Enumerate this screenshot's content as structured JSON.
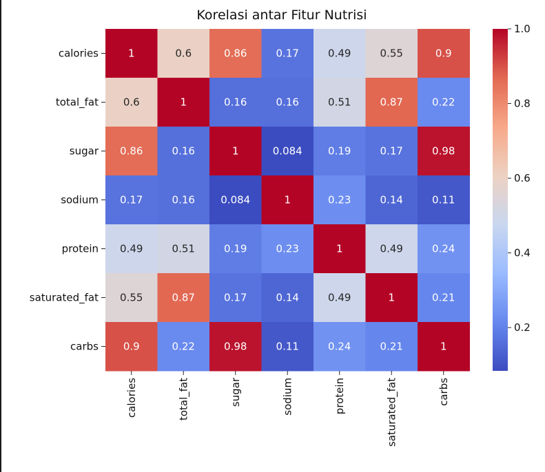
{
  "chart_data": {
    "type": "heatmap",
    "title": "Korelasi antar Fitur Nutrisi",
    "xlabel": "",
    "ylabel": "",
    "labels": [
      "calories",
      "total_fat",
      "sugar",
      "sodium",
      "protein",
      "saturated_fat",
      "carbs"
    ],
    "matrix": [
      [
        1,
        0.6,
        0.86,
        0.17,
        0.49,
        0.55,
        0.9
      ],
      [
        0.6,
        1,
        0.16,
        0.16,
        0.51,
        0.87,
        0.22
      ],
      [
        0.86,
        0.16,
        1,
        0.084,
        0.19,
        0.17,
        0.98
      ],
      [
        0.17,
        0.16,
        0.084,
        1,
        0.23,
        0.14,
        0.11
      ],
      [
        0.49,
        0.51,
        0.19,
        0.23,
        1,
        0.49,
        0.24
      ],
      [
        0.55,
        0.87,
        0.17,
        0.14,
        0.49,
        1,
        0.21
      ],
      [
        0.9,
        0.22,
        0.98,
        0.11,
        0.24,
        0.21,
        1
      ]
    ],
    "annotations": [
      [
        "1",
        "0.6",
        "0.86",
        "0.17",
        "0.49",
        "0.55",
        "0.9"
      ],
      [
        "0.6",
        "1",
        "0.16",
        "0.16",
        "0.51",
        "0.87",
        "0.22"
      ],
      [
        "0.86",
        "0.16",
        "1",
        "0.084",
        "0.19",
        "0.17",
        "0.98"
      ],
      [
        "0.17",
        "0.16",
        "0.084",
        "1",
        "0.23",
        "0.14",
        "0.11"
      ],
      [
        "0.49",
        "0.51",
        "0.19",
        "0.23",
        "1",
        "0.49",
        "0.24"
      ],
      [
        "0.55",
        "0.87",
        "0.17",
        "0.14",
        "0.49",
        "1",
        "0.21"
      ],
      [
        "0.9",
        "0.22",
        "0.98",
        "0.11",
        "0.24",
        "0.21",
        "1"
      ]
    ],
    "colormap": "coolwarm",
    "vmin": 0.084,
    "vmax": 1,
    "colorbar_ticks": [
      {
        "value": 0.2,
        "label": "0.2"
      },
      {
        "value": 0.4,
        "label": "0.4"
      },
      {
        "value": 0.6,
        "label": "0.6"
      },
      {
        "value": 0.8,
        "label": "0.8"
      },
      {
        "value": 1.0,
        "label": "1.0"
      }
    ],
    "colorbar_stops": [
      "#3b4cc0",
      "#6788ee",
      "#9abbff",
      "#c9d7f0",
      "#edd1c2",
      "#f7a889",
      "#e26952",
      "#b40426"
    ]
  }
}
